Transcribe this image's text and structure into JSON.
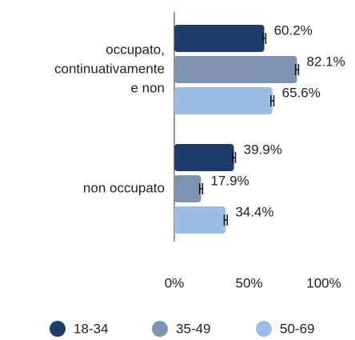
{
  "chart_data": {
    "type": "hbar",
    "categories": [
      [
        "occupato,",
        "continuativamente",
        "e non"
      ],
      [
        "non occupato"
      ]
    ],
    "series": [
      {
        "name": "18-34",
        "color": "#1e3d6b",
        "values": [
          60.2,
          39.9
        ],
        "value_labels": [
          "60.2%",
          "39.9%"
        ],
        "errors": [
          1,
          1
        ]
      },
      {
        "name": "35-49",
        "color": "#7d93b0",
        "values": [
          82.1,
          17.9
        ],
        "value_labels": [
          "82.1%",
          "17.9%"
        ],
        "errors": [
          1,
          1
        ]
      },
      {
        "name": "50-69",
        "color": "#9cbde3",
        "values": [
          65.6,
          34.4
        ],
        "value_labels": [
          "65.6%",
          "34.4%"
        ],
        "errors": [
          1,
          1
        ]
      }
    ],
    "xlim": [
      0,
      100
    ],
    "xticks": [
      {
        "value": 0,
        "label": "0%"
      },
      {
        "value": 50,
        "label": "50%"
      },
      {
        "value": 100,
        "label": "100%"
      }
    ],
    "legend": "bottom"
  }
}
